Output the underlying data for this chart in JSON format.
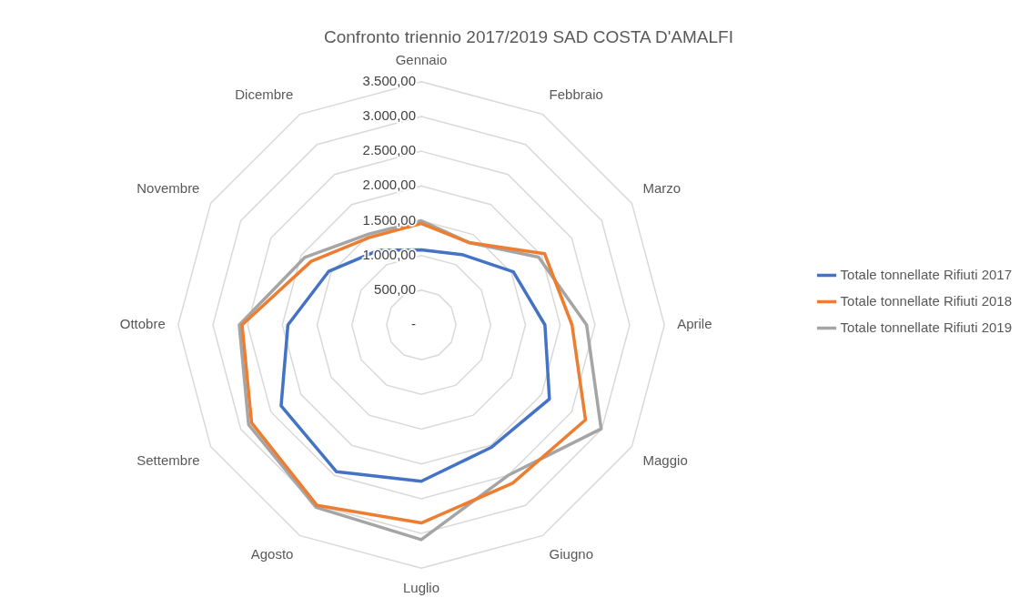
{
  "chart_data": {
    "type": "radar",
    "title": "Confronto triennio 2017/2019 SAD COSTA D'AMALFI",
    "categories": [
      "Gennaio",
      "Febbraio",
      "Marzo",
      "Aprile",
      "Maggio",
      "Giugno",
      "Luglio",
      "Agosto",
      "Settembre",
      "Ottobre",
      "Novembre",
      "Dicembre"
    ],
    "series": [
      {
        "name": "Totale tonnellate Rifiuti 2017",
        "color": "#4472c4",
        "values": [
          1080,
          1170,
          1530,
          1780,
          2130,
          2030,
          2250,
          2440,
          2330,
          1920,
          1540,
          1240
        ]
      },
      {
        "name": "Totale tonnellate Rifiuti 2018",
        "color": "#ed7d31",
        "values": [
          1460,
          1370,
          2050,
          2170,
          2730,
          2630,
          2850,
          3000,
          2820,
          2580,
          1830,
          1460
        ]
      },
      {
        "name": "Totale tonnellate Rifiuti 2019",
        "color": "#a5a5a5",
        "values": [
          1500,
          1370,
          1950,
          2380,
          2990,
          2500,
          3090,
          3030,
          2870,
          2620,
          1940,
          1510
        ]
      }
    ],
    "ylim": [
      0,
      3500
    ],
    "yticks": [
      {
        "value": 0,
        "label": "-"
      },
      {
        "value": 500,
        "label": "500,00"
      },
      {
        "value": 1000,
        "label": "1.000,00"
      },
      {
        "value": 1500,
        "label": "1.500,00"
      },
      {
        "value": 2000,
        "label": "2.000,00"
      },
      {
        "value": 2500,
        "label": "2.500,00"
      },
      {
        "value": 3000,
        "label": "3.000,00"
      },
      {
        "value": 3500,
        "label": "3.500,00"
      }
    ],
    "grid": true,
    "legend": "right",
    "marker": "none",
    "line_style": "solid"
  }
}
